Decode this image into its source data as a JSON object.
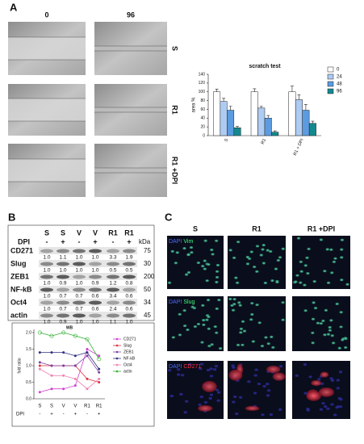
{
  "panels": {
    "a": {
      "label": "A",
      "columns": [
        "0",
        "96"
      ],
      "rows": [
        "S",
        "R1",
        "R1 +DPI"
      ]
    },
    "b": {
      "label": "B"
    },
    "c": {
      "label": "C",
      "columns": [
        "S",
        "R1",
        "R1 +DPI"
      ],
      "rows": [
        {
          "dapi": "DAPI",
          "marker": "Vim"
        },
        {
          "dapi": "DAPI",
          "marker": "Slug"
        },
        {
          "dapi": "DAPI",
          "marker": "CD271"
        }
      ]
    }
  },
  "blot": {
    "dpi_label": "DPI",
    "kda_label": "kDa",
    "columns": [
      "S",
      "S",
      "V",
      "V",
      "R1",
      "R1"
    ],
    "dpi": [
      "-",
      "+",
      "-",
      "+",
      "-",
      "+"
    ],
    "rows": [
      {
        "name": "CD271",
        "kda": "75",
        "values": [
          "1.0",
          "1.1",
          "1.0",
          "1.0",
          "3.3",
          "1.9"
        ]
      },
      {
        "name": "Slug",
        "kda": "30",
        "values": [
          "1.0",
          "1.0",
          "1.0",
          "1.0",
          "0.5",
          "0.5"
        ]
      },
      {
        "name": "ZEB1",
        "kda": "200",
        "values": [
          "1.0",
          "0.9",
          "1.0",
          "0.9",
          "1.2",
          "0.8"
        ]
      },
      {
        "name": "NF-kB",
        "kda": "50",
        "values": [
          "1.0",
          "0.7",
          "0.7",
          "0.6",
          "3.4",
          "0.6"
        ]
      },
      {
        "name": "Oct4",
        "kda": "34",
        "values": [
          "1.0",
          "0.7",
          "0.7",
          "0.6",
          "2.4",
          "0.6"
        ]
      },
      {
        "name": "actin",
        "kda": "45",
        "values": [
          "1.0",
          "0.9",
          "1.0",
          "1.0",
          "1.1",
          "1.0"
        ]
      }
    ]
  },
  "chart_data": [
    {
      "type": "bar",
      "title": "scratch test",
      "ylabel": "area %",
      "categories": [
        "S",
        "R1",
        "R1 + DPI"
      ],
      "series": [
        {
          "name": "0",
          "color": "#ffffff",
          "values": [
            100,
            100,
            100
          ],
          "errors": [
            6,
            7,
            13
          ]
        },
        {
          "name": "24",
          "color": "#aecbf2",
          "values": [
            78,
            63,
            82
          ],
          "errors": [
            7,
            4,
            11
          ]
        },
        {
          "name": "48",
          "color": "#5b9be0",
          "values": [
            58,
            40,
            58
          ],
          "errors": [
            9,
            6,
            13
          ]
        },
        {
          "name": "96",
          "color": "#13898f",
          "values": [
            18,
            8,
            28
          ],
          "errors": [
            3,
            3,
            5
          ]
        }
      ],
      "ylim": [
        0,
        140
      ],
      "yticks": [
        0,
        20,
        40,
        60,
        80,
        100,
        120,
        140
      ]
    },
    {
      "type": "line",
      "title": "WB",
      "ylabel": "fold ratio",
      "categories": [
        "S",
        "S",
        "V",
        "V",
        "R1",
        "R1"
      ],
      "dpi_label": "DPI",
      "dpi": [
        "-",
        "+",
        "-",
        "+",
        "-",
        "+"
      ],
      "series": [
        {
          "name": "CD271",
          "color": "#d040d0",
          "values": [
            0.2,
            0.3,
            0.3,
            0.4,
            1.5,
            1.3
          ]
        },
        {
          "name": "Slug",
          "color": "#e03040",
          "values": [
            1.0,
            1.0,
            1.0,
            1.0,
            0.6,
            0.5
          ]
        },
        {
          "name": "ZEB1",
          "color": "#8040a0",
          "values": [
            1.1,
            1.0,
            1.0,
            1.0,
            1.3,
            0.8
          ]
        },
        {
          "name": "NF-kB",
          "color": "#303080",
          "values": [
            1.4,
            1.4,
            1.4,
            1.3,
            1.4,
            0.9
          ]
        },
        {
          "name": "Oct4",
          "color": "#f080b0",
          "values": [
            0.9,
            0.7,
            0.7,
            0.6,
            0.3,
            0.6
          ]
        },
        {
          "name": "actin",
          "color": "#30b030",
          "values": [
            2.0,
            1.9,
            2.0,
            1.9,
            1.8,
            1.2
          ]
        }
      ],
      "ylim": [
        0,
        2.0
      ],
      "yticks": [
        {
          "value": 0,
          "label": "0.0"
        },
        {
          "value": 0.5,
          "label": "0.5"
        },
        {
          "value": 1.0,
          "label": "1.0"
        },
        {
          "value": 1.5,
          "label": "1.5"
        },
        {
          "value": 2.0,
          "label": "2.0"
        }
      ]
    }
  ]
}
